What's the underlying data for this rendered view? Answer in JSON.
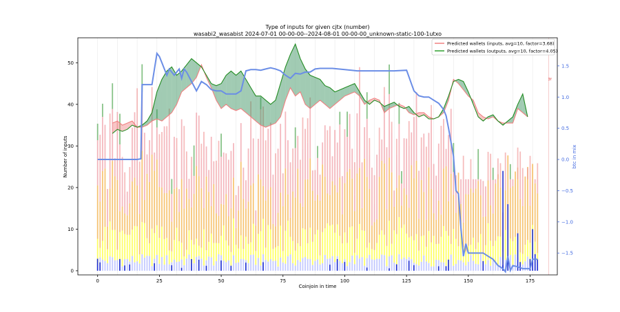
{
  "chart_data": {
    "type": "bar",
    "title": "Type of inputs for given cjtx (number)",
    "subtitle": "wasabi2_wasabist 2024-07-01 00-00-00--2024-08-01 00-00-00_unknown-static-100-1utxo",
    "xlabel": "Coinjoin in time",
    "ylabel": "Number of inputs",
    "y2label": "btc in mix",
    "xlim": [
      -8,
      186
    ],
    "ylim": [
      -1,
      56
    ],
    "y2lim": [
      -1.85,
      1.95
    ],
    "x_ticks": [
      0,
      25,
      50,
      75,
      100,
      125,
      150,
      175
    ],
    "y_ticks": [
      0,
      10,
      20,
      30,
      40,
      50
    ],
    "y2_ticks": [
      1.5,
      1.0,
      0.5,
      0.0,
      -0.5,
      -1.0,
      -1.5
    ],
    "legend_position": "top-right",
    "legend": [
      "Predicted wallets (inputs, avg=10, factor=3.68)",
      "Predicted wallets (outputs, avg=10, factor=4.05)"
    ],
    "right_marker_label": "3f",
    "colors": {
      "inputs_line": "#f08080",
      "inputs_fill": "#f08080",
      "outputs_line": "#228b22",
      "outputs_fill": "#2e8b57",
      "btc_line": "#6a8de6",
      "axis2": "#4169e1",
      "stack": [
        "#b0b8ff",
        "#ffff33",
        "#f4b247",
        "#f0a0a8",
        "#f2a0a0",
        "#55aa55"
      ]
    },
    "stack_segments": [
      "small inputs (light blue)",
      "fresh inputs (yellow)",
      "remixed inputs (orange)",
      "remixed inputs (pink)",
      "top inputs (red / green)"
    ],
    "series": [
      {
        "name": "Predicted wallets (inputs, avg=10, factor=3.68)",
        "x": [
          0,
          4,
          6,
          8,
          10,
          12,
          14,
          16,
          18,
          20,
          22,
          24,
          26,
          28,
          30,
          32,
          34,
          36,
          38,
          40,
          42,
          44,
          46,
          48,
          50,
          52,
          54,
          56,
          58,
          60,
          62,
          64,
          66,
          68,
          70,
          72,
          74,
          76,
          78,
          80,
          82,
          84,
          86,
          88,
          90,
          92,
          94,
          96,
          98,
          100,
          102,
          104,
          106,
          108,
          110,
          112,
          114,
          116,
          118,
          120,
          122,
          124,
          126,
          128,
          130,
          132,
          134,
          136,
          138,
          140,
          142,
          144,
          146,
          148,
          150,
          152,
          154,
          156,
          158,
          160,
          162,
          164,
          166,
          168,
          170,
          172,
          174,
          176,
          178
        ],
        "values": [
          null,
          null,
          35.5,
          36,
          35,
          35.5,
          36,
          34.5,
          34.5,
          35,
          36,
          36.5,
          36,
          37,
          38,
          40,
          43,
          44,
          45,
          46.5,
          49.5,
          46.5,
          44,
          41,
          39,
          40,
          39,
          38.5,
          39,
          38,
          37,
          36,
          35,
          34.5,
          35,
          35.5,
          37,
          41,
          44,
          42,
          43,
          40,
          39,
          40,
          41,
          40,
          39,
          40,
          41,
          42,
          42.5,
          43,
          42,
          40,
          41,
          41.5,
          41,
          38,
          39,
          39.5,
          40,
          39.5,
          38,
          37.5,
          38,
          38,
          37,
          36.5,
          37,
          38,
          41,
          46,
          45,
          43.5,
          42,
          41,
          38,
          37,
          36.5,
          37,
          36,
          35.5,
          35.5,
          35.5,
          39,
          38,
          37,
          null,
          null
        ]
      },
      {
        "name": "Predicted wallets (outputs, avg=10, factor=4.05)",
        "x": [
          0,
          4,
          6,
          8,
          10,
          12,
          14,
          16,
          18,
          20,
          22,
          24,
          26,
          28,
          30,
          32,
          34,
          36,
          38,
          40,
          42,
          44,
          46,
          48,
          50,
          52,
          54,
          56,
          58,
          60,
          62,
          64,
          66,
          68,
          70,
          72,
          74,
          76,
          78,
          80,
          82,
          84,
          86,
          88,
          90,
          92,
          94,
          96,
          98,
          100,
          102,
          104,
          106,
          108,
          110,
          112,
          114,
          116,
          118,
          120,
          122,
          124,
          126,
          128,
          130,
          132,
          134,
          136,
          138,
          140,
          142,
          144,
          146,
          148,
          150,
          152,
          154,
          156,
          158,
          160,
          162,
          164,
          166,
          168,
          170,
          172,
          174,
          176,
          178
        ],
        "values": [
          null,
          null,
          33,
          34,
          33.5,
          34,
          35,
          34.5,
          35,
          36,
          38,
          43,
          46,
          48,
          49,
          47,
          48,
          49.5,
          51,
          50,
          49,
          47,
          45,
          44.5,
          45,
          47,
          48,
          47,
          48,
          46,
          44,
          42,
          42,
          41,
          40,
          41,
          45,
          49,
          52,
          54.5,
          51,
          48.5,
          47,
          46.5,
          46,
          44.5,
          44,
          43,
          43.5,
          44,
          44.5,
          45,
          43,
          41,
          40,
          41,
          40.5,
          39.5,
          40,
          40.5,
          39.5,
          39,
          39.5,
          38,
          37,
          37.5,
          36.5,
          36.5,
          37,
          39,
          42,
          45.5,
          46,
          45.5,
          43,
          40,
          37,
          36,
          37,
          37.5,
          36,
          35,
          36,
          37,
          40,
          42.5,
          37,
          null,
          null
        ]
      },
      {
        "name": "btc in mix",
        "axis": "right",
        "x": [
          0,
          4,
          8,
          12,
          16,
          17.5,
          18,
          20,
          21,
          22,
          23,
          24,
          25,
          26,
          27,
          28,
          29,
          30,
          31,
          32,
          33,
          34,
          35,
          36,
          38,
          40,
          42,
          44,
          46,
          48,
          50,
          52,
          54,
          56,
          58,
          60,
          62,
          64,
          66,
          68,
          70,
          72,
          74,
          76,
          78,
          80,
          82,
          84,
          86,
          88,
          90,
          95,
          100,
          105,
          110,
          115,
          120,
          125,
          128,
          130,
          132,
          134,
          136,
          138,
          140,
          141,
          142,
          144,
          145,
          146,
          147,
          148,
          149,
          150,
          152,
          154,
          156,
          158,
          160,
          162,
          164,
          165,
          166,
          167,
          168,
          170,
          172,
          174,
          175,
          176,
          178
        ],
        "values": [
          0,
          0,
          0,
          0,
          0,
          0.01,
          1.2,
          1.2,
          1.2,
          1.2,
          1.45,
          1.7,
          1.65,
          1.55,
          1.45,
          1.35,
          1.45,
          1.4,
          1.35,
          1.4,
          1.45,
          1.3,
          1.45,
          1.4,
          1.25,
          1.1,
          1.25,
          1.2,
          1.12,
          1.1,
          1.1,
          1.05,
          1.05,
          1.05,
          1.1,
          1.42,
          1.44,
          1.44,
          1.43,
          1.45,
          1.47,
          1.45,
          1.42,
          1.35,
          1.3,
          1.38,
          1.37,
          1.4,
          1.4,
          1.45,
          1.46,
          1.46,
          1.44,
          1.42,
          1.42,
          1.42,
          1.42,
          1.43,
          1.1,
          1.02,
          1.0,
          1.0,
          0.95,
          0.9,
          0.8,
          0.7,
          0.5,
          0.05,
          -0.5,
          -0.55,
          -1.1,
          -1.55,
          -1.35,
          -1.5,
          -1.5,
          -1.5,
          -1.5,
          -1.55,
          -1.6,
          -1.7,
          -1.75,
          -1.8,
          -1.55,
          -1.78,
          -1.7,
          -1.72,
          -1.75,
          -1.75,
          -1.75,
          -1.6,
          -1.6
        ]
      }
    ]
  }
}
